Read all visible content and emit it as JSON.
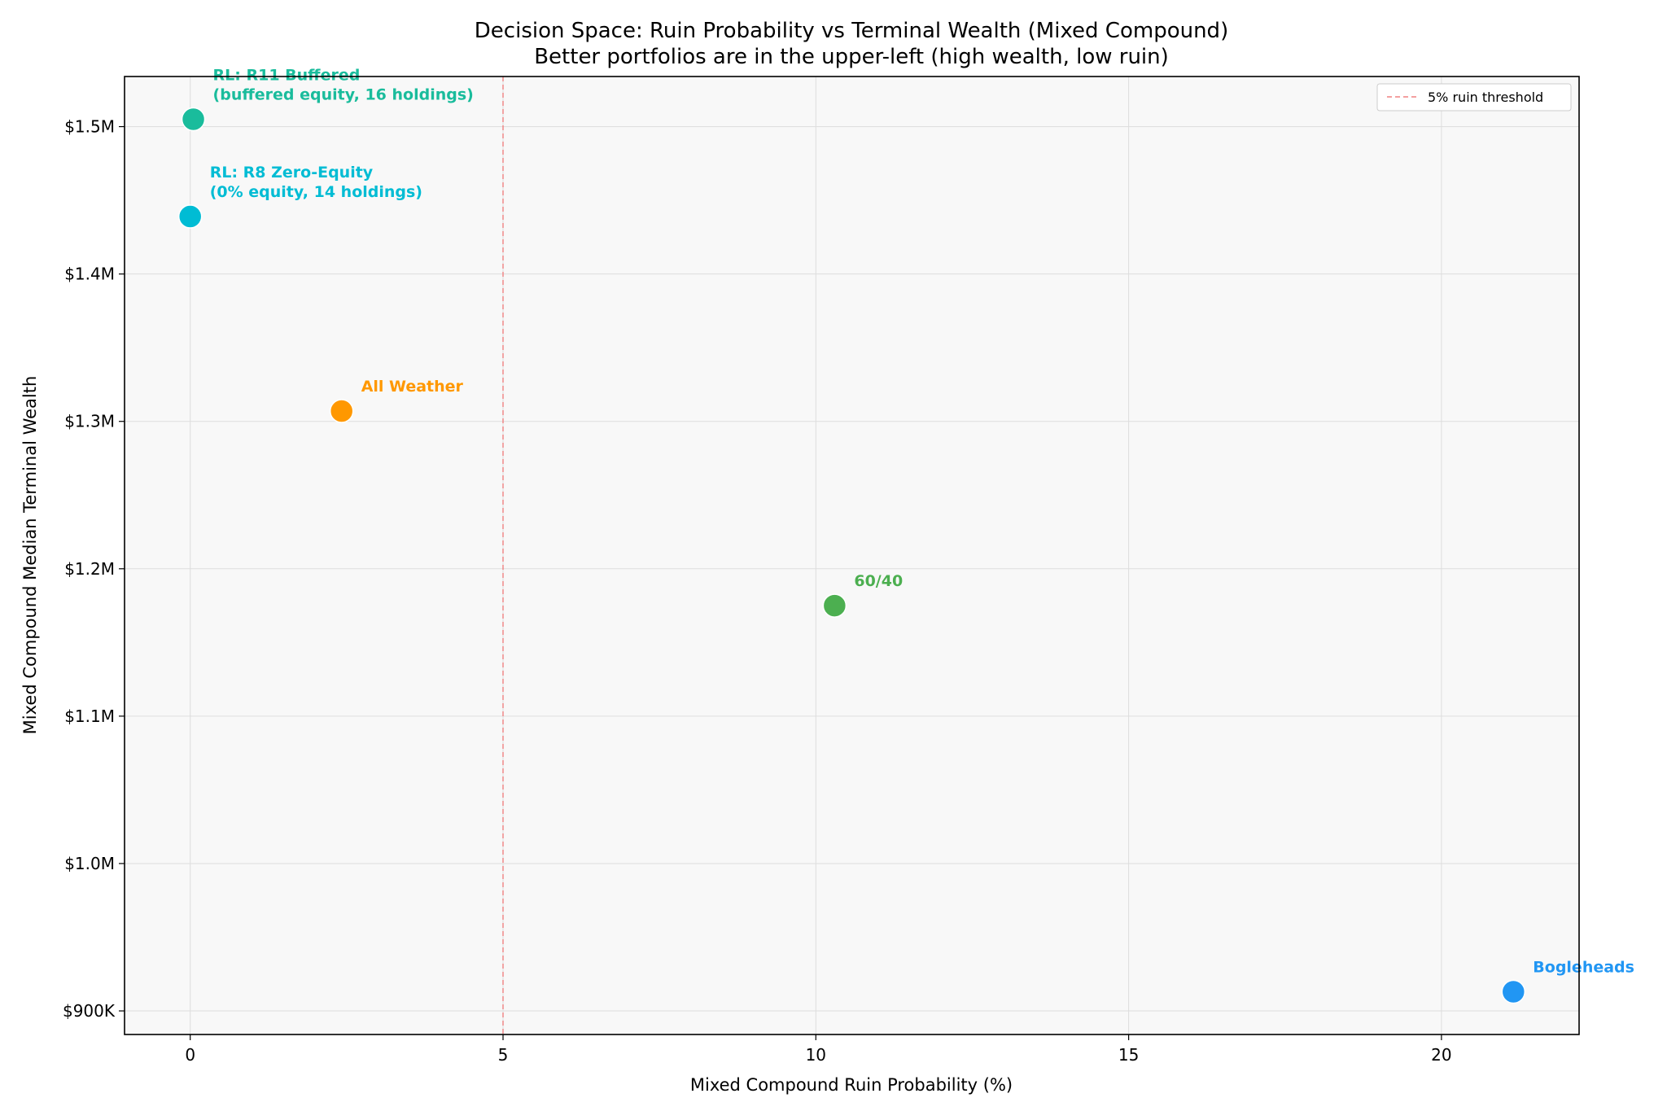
{
  "chart_data": {
    "type": "scatter",
    "title": "Decision Space: Ruin Probability vs Terminal Wealth (Mixed Compound)",
    "subtitle": "Better portfolios are in the upper-left (high wealth, low ruin)",
    "xlabel": "Mixed Compound Ruin Probability (%)",
    "ylabel": "Mixed Compound Median Terminal Wealth",
    "xlim": [
      -1.05,
      22.2
    ],
    "ylim": [
      884000,
      1534000
    ],
    "xticks": [
      0,
      5,
      10,
      15,
      20
    ],
    "xtick_labels": [
      "0",
      "5",
      "10",
      "15",
      "20"
    ],
    "yticks": [
      900000,
      1000000,
      1100000,
      1200000,
      1300000,
      1400000,
      1500000
    ],
    "ytick_labels": [
      "$900K",
      "$1.0M",
      "$1.1M",
      "$1.2M",
      "$1.3M",
      "$1.4M",
      "$1.5M"
    ],
    "grid": true,
    "legend_position": "top-right",
    "reference_line": {
      "x": 5,
      "label": "5% ruin threshold",
      "color": "#f08080",
      "style": "dashed"
    },
    "points": [
      {
        "label_lines": [
          "RL: R11 Buffered",
          "(buffered equity, 16 holdings)"
        ],
        "x": 0.05,
        "y": 1505000,
        "color": "#1abc9c"
      },
      {
        "label_lines": [
          "RL: R8 Zero-Equity",
          "(0% equity, 14 holdings)"
        ],
        "x": 0.0,
        "y": 1439000,
        "color": "#00bcd4"
      },
      {
        "label_lines": [
          "All Weather"
        ],
        "x": 2.42,
        "y": 1307000,
        "color": "#ff9800"
      },
      {
        "label_lines": [
          "60/40"
        ],
        "x": 10.3,
        "y": 1175000,
        "color": "#4caf50"
      },
      {
        "label_lines": [
          "Bogleheads"
        ],
        "x": 21.15,
        "y": 913000,
        "color": "#2196f3"
      }
    ]
  }
}
